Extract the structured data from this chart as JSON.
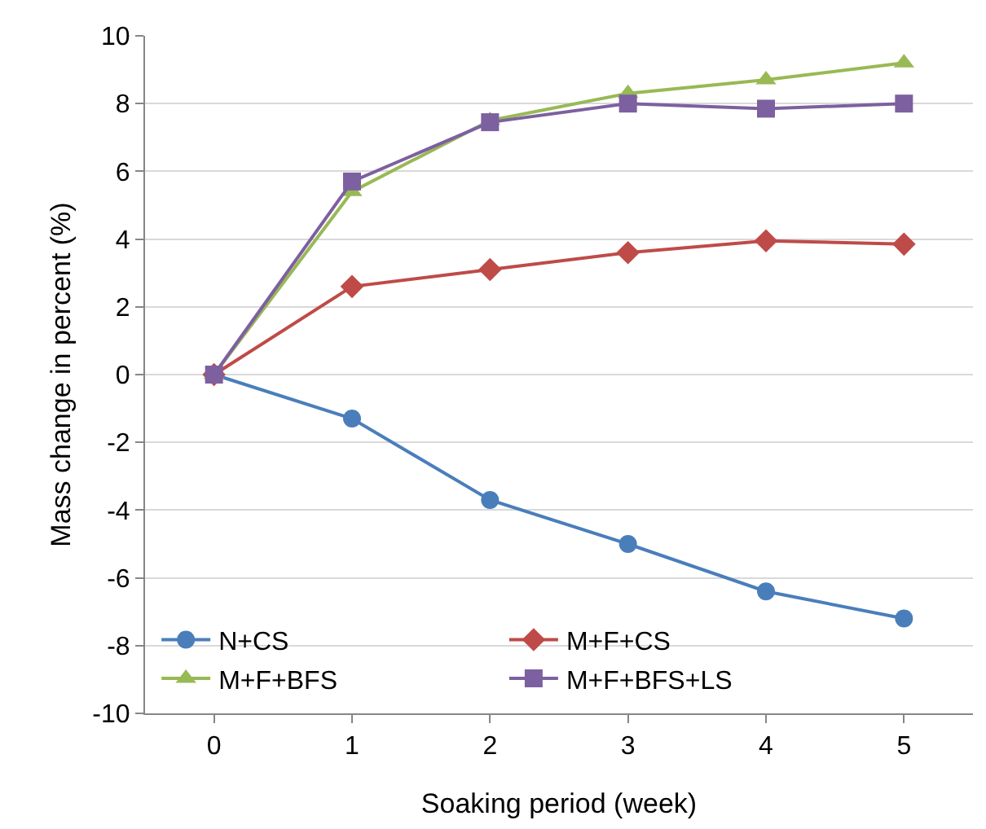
{
  "chart_data": {
    "type": "line",
    "xlabel": "Soaking period (week)",
    "ylabel": "Mass change in percent (%)",
    "x": [
      0,
      1,
      2,
      3,
      4,
      5
    ],
    "xlim": [
      -0.5,
      5.5
    ],
    "xticks": [
      0,
      1,
      2,
      3,
      4,
      5
    ],
    "ylim": [
      -10,
      10
    ],
    "yticks": [
      -10,
      -8,
      -6,
      -4,
      -2,
      0,
      2,
      4,
      6,
      8,
      10
    ],
    "grid": "y",
    "legend": "bottom left",
    "series": [
      {
        "name": "N+CS",
        "color": "#4a7ebb",
        "marker": "circle",
        "values": [
          0,
          -1.3,
          -3.7,
          -5.0,
          -6.4,
          -7.2
        ]
      },
      {
        "name": "M+F+CS",
        "color": "#be4b48",
        "marker": "diamond",
        "values": [
          0,
          2.6,
          3.1,
          3.6,
          3.95,
          3.85
        ]
      },
      {
        "name": "M+F+BFS",
        "color": "#98b954",
        "marker": "triangle",
        "values": [
          0,
          5.4,
          7.5,
          8.3,
          8.7,
          9.2
        ]
      },
      {
        "name": "M+F+BFS+LS",
        "color": "#7d60a0",
        "marker": "square",
        "values": [
          0,
          5.7,
          7.45,
          8.0,
          7.85,
          8.0
        ]
      }
    ]
  }
}
